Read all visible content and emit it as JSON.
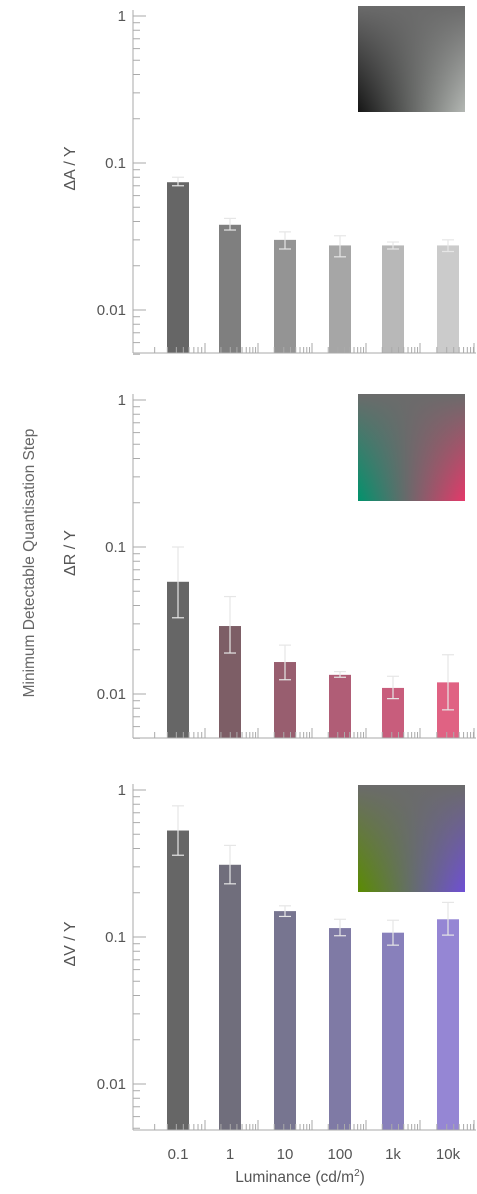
{
  "figure": {
    "shared_ylabel": "Minimum Detectable Quantisation Step",
    "xlabel_main": "Luminance (cd/m",
    "xlabel_sup": "2",
    "xlabel_close": ")"
  },
  "chart_data": [
    {
      "type": "bar",
      "ylabel": "ΔA / Y",
      "yscale": "log",
      "ylim": [
        0.005,
        1
      ],
      "yticks": [
        1,
        0.1,
        0.01
      ],
      "ytick_labels": [
        "1",
        "0.1",
        "0.01"
      ],
      "categories": [
        "0.1",
        "1",
        "10",
        "100",
        "1k",
        "10k"
      ],
      "values": [
        0.074,
        0.038,
        0.03,
        0.0275,
        0.0275,
        0.0275
      ],
      "err_low": [
        0.07,
        0.035,
        0.026,
        0.023,
        0.026,
        0.025
      ],
      "err_high": [
        0.08,
        0.042,
        0.034,
        0.032,
        0.029,
        0.03
      ],
      "bar_colors": [
        "#666666",
        "#7f7f7f",
        "#949494",
        "#a6a6a6",
        "#b8b8b8",
        "#cbcbcb"
      ],
      "swatch": {
        "base": "#6b6b6b",
        "corner_left": "#151515",
        "corner_right": "#b4b8b4"
      }
    },
    {
      "type": "bar",
      "ylabel": "ΔR / Y",
      "yscale": "log",
      "ylim": [
        0.005,
        1
      ],
      "yticks": [
        1,
        0.1,
        0.01
      ],
      "ytick_labels": [
        "1",
        "0.1",
        "0.01"
      ],
      "categories": [
        "0.1",
        "1",
        "10",
        "100",
        "1k",
        "10k"
      ],
      "values": [
        0.058,
        0.029,
        0.0165,
        0.0135,
        0.011,
        0.012
      ],
      "err_low": [
        0.033,
        0.019,
        0.0125,
        0.013,
        0.0093,
        0.0078
      ],
      "err_high": [
        0.1,
        0.046,
        0.0215,
        0.0142,
        0.0132,
        0.0185
      ],
      "bar_colors": [
        "#666666",
        "#7d5e66",
        "#985e6f",
        "#b05d76",
        "#c85d7c",
        "#e06283"
      ],
      "swatch": {
        "base": "#6b6b6b",
        "corner_left": "#00936c",
        "corner_right": "#e6386a"
      }
    },
    {
      "type": "bar",
      "ylabel": "ΔV / Y",
      "yscale": "log",
      "ylim": [
        0.005,
        1
      ],
      "yticks": [
        1,
        0.1,
        0.01
      ],
      "ytick_labels": [
        "1",
        "0.1",
        "0.01"
      ],
      "categories": [
        "0.1",
        "1",
        "10",
        "100",
        "1k",
        "10k"
      ],
      "values": [
        0.53,
        0.31,
        0.15,
        0.115,
        0.107,
        0.132
      ],
      "err_low": [
        0.36,
        0.23,
        0.138,
        0.102,
        0.088,
        0.103
      ],
      "err_high": [
        0.78,
        0.42,
        0.163,
        0.132,
        0.13,
        0.172
      ],
      "bar_colors": [
        "#666666",
        "#706e7c",
        "#777590",
        "#7f7aa5",
        "#8880bb",
        "#9586d4"
      ],
      "swatch": {
        "base": "#6b6b6b",
        "corner_left": "#5a8c00",
        "corner_right": "#6f4fd6"
      }
    }
  ]
}
